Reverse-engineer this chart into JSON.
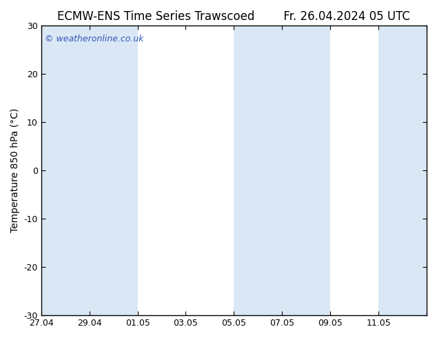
{
  "title": "ECMW-ENS Time Series Trawscoed",
  "title_right": "Fr. 26.04.2024 05 UTC",
  "ylabel": "Temperature 850 hPa (°C)",
  "ylim": [
    -30,
    30
  ],
  "yticks": [
    -30,
    -20,
    -10,
    0,
    10,
    20,
    30
  ],
  "xtick_positions": [
    0,
    2,
    4,
    6,
    8,
    10,
    12,
    14,
    16
  ],
  "xtick_labels": [
    "27.04",
    "29.04",
    "01.05",
    "03.05",
    "05.05",
    "07.05",
    "09.05",
    "11.05",
    ""
  ],
  "background_color": "#ffffff",
  "plot_bg_color": "#ffffff",
  "shaded_color": "#dae8f5",
  "watermark": "© weatheronline.co.uk",
  "watermark_color": "#3355bb",
  "title_fontsize": 12,
  "ylabel_fontsize": 10,
  "shaded_bands": [
    [
      0,
      2
    ],
    [
      2,
      4
    ],
    [
      8,
      10
    ],
    [
      10,
      12
    ],
    [
      14,
      16
    ]
  ],
  "x_start": 0,
  "x_end": 16
}
